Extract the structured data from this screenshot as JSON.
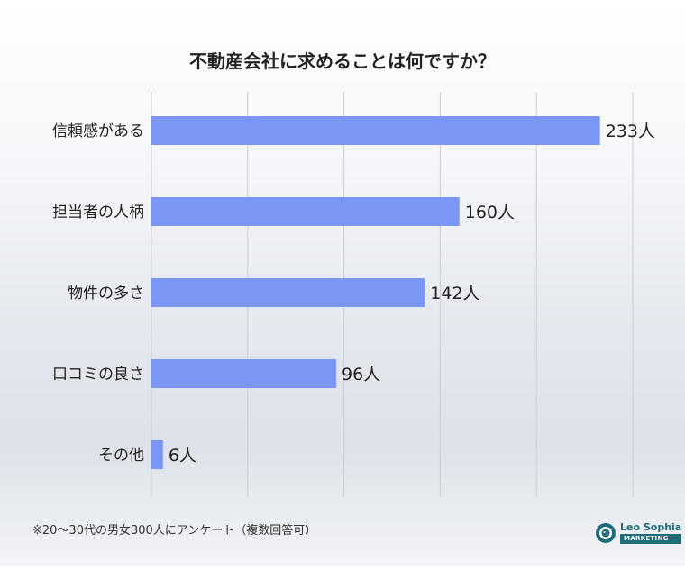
{
  "chart_data": {
    "type": "bar",
    "orientation": "horizontal",
    "title": "不動産会社に求めることは何ですか？",
    "categories": [
      "信頼感がある",
      "担当者の人柄",
      "物件の多さ",
      "口コミの良さ",
      "その他"
    ],
    "values": [
      233,
      160,
      142,
      96,
      6
    ],
    "value_labels": [
      "233人",
      "160人",
      "142人",
      "96人",
      "6人"
    ],
    "xlim": [
      0,
      250
    ],
    "grid": true,
    "bar_color": "#7a97f5"
  },
  "footnote": "※20～30代の男女300人にアンケート（複数回答可）",
  "logo": {
    "name": "Leo Sophia",
    "sub": "MARKETING"
  }
}
